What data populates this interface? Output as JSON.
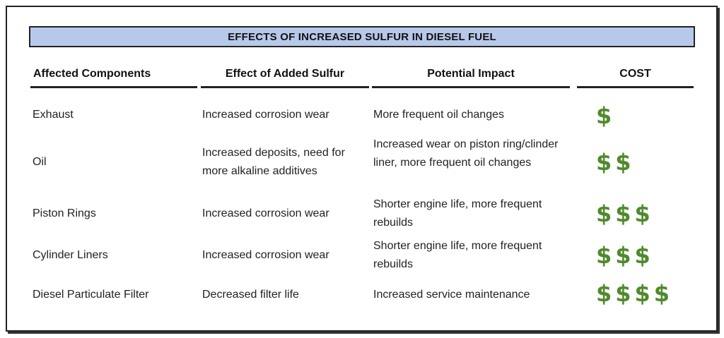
{
  "title": "EFFECTS OF INCREASED SULFUR IN DIESEL FUEL",
  "headers": {
    "component": "Affected Components",
    "effect": "Effect of Added Sulfur",
    "impact": "Potential Impact",
    "cost": "COST"
  },
  "rows": [
    {
      "component": "Exhaust",
      "effect": "Increased corrosion wear",
      "impact": "More frequent oil changes",
      "cost": "$"
    },
    {
      "component": "Oil",
      "effect": "Increased deposits,  need for more alkaline additives",
      "impact": "Increased wear on piston ring/clinder liner, more frequent oil changes",
      "cost": "$$"
    },
    {
      "component": "Piston Rings",
      "effect": "Increased corrosion wear",
      "impact": "Shorter engine life, more frequent rebuilds",
      "cost": "$$$"
    },
    {
      "component": "Cylinder Liners",
      "effect": "Increased corrosion wear",
      "impact": "Shorter engine life, more frequent rebuilds",
      "cost": "$$$"
    },
    {
      "component": "Diesel Particulate Filter",
      "effect": "Decreased filter life",
      "impact": "Increased service maintenance",
      "cost": "$$$$"
    }
  ],
  "colors": {
    "title_bg": "#b7c9ea",
    "cost_green": "#4f8a2c"
  }
}
